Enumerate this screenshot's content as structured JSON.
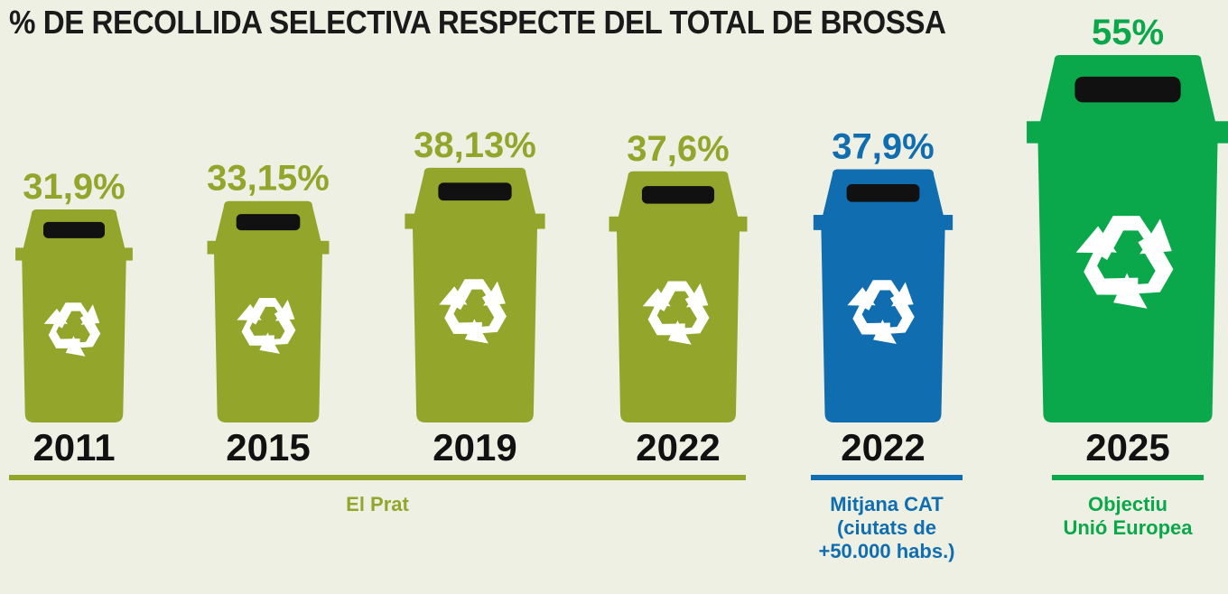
{
  "title": "% DE RECOLLIDA SELECTIVA RESPECTE DEL TOTAL DE BROSSA",
  "colors": {
    "olive": "#93a62b",
    "blue": "#0f6db0",
    "green": "#0aa84a",
    "black": "#111111",
    "background": "#eef0e4"
  },
  "icons": {
    "bin": "recycling-bin-icon",
    "symbol": "recycle-icon"
  },
  "chart_data": {
    "type": "bar",
    "title": "% DE RECOLLIDA SELECTIVA RESPECTE DEL TOTAL DE BROSSA",
    "unit": "%",
    "categories": [
      "2011",
      "2015",
      "2019",
      "2022",
      "2022",
      "2025"
    ],
    "values": [
      31.9,
      33.15,
      38.13,
      37.6,
      37.9,
      55
    ],
    "value_labels": [
      "31,9%",
      "33,15%",
      "38,13%",
      "37,6%",
      "37,9%",
      "55%"
    ],
    "groups": [
      {
        "label": "El Prat",
        "indices": [
          0,
          1,
          2,
          3
        ],
        "color": "#93a62b"
      },
      {
        "label": "Mitjana CAT (ciutats de +50.000 habs.)",
        "label_lines": [
          "Mitjana CAT",
          "(ciutats de",
          "+50.000 habs.)"
        ],
        "indices": [
          4
        ],
        "color": "#0f6db0"
      },
      {
        "label": "Objectiu Unió Europea",
        "label_lines": [
          "Objectiu",
          "Unió Europea"
        ],
        "indices": [
          5
        ],
        "color": "#0aa84a"
      }
    ],
    "xlabel": "",
    "ylabel": "",
    "grid": false,
    "legend": "none"
  }
}
